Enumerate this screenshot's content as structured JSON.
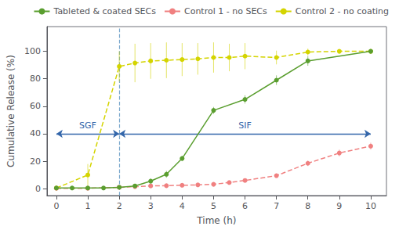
{
  "chart_data": {
    "type": "line",
    "x_label": "Time (h)",
    "y_label": "Cumulative Release (%)",
    "xlim": [
      -0.3,
      10.5
    ],
    "ylim": [
      -5,
      118
    ],
    "xticks": [
      0,
      1,
      2,
      3,
      4,
      5,
      6,
      7,
      8,
      9,
      10
    ],
    "yticks": [
      0,
      20,
      40,
      60,
      80,
      100
    ],
    "grid": false,
    "legend": "upper right",
    "series": [
      {
        "name": "Tableted & coated SECs",
        "color": "#5a9e2f",
        "line_style": "solid",
        "marker": "circle",
        "x": [
          0,
          0.5,
          1,
          1.5,
          2,
          2.5,
          3,
          3.5,
          4,
          5,
          6,
          7,
          8,
          10
        ],
        "values": [
          0.5,
          0.5,
          0.5,
          0.5,
          1.0,
          2.0,
          5.5,
          10.5,
          22,
          57,
          65,
          79,
          93,
          100
        ],
        "error": [
          0.4,
          0.4,
          0.4,
          0.4,
          0.8,
          1.2,
          2.0,
          2.5,
          2.0,
          2.5,
          3.0,
          3.5,
          3.5,
          1.0
        ]
      },
      {
        "name": "Control 1 - no SECs",
        "color": "#f08080",
        "line_style": "dashed",
        "marker": "circle",
        "x": [
          0,
          1,
          2,
          2.5,
          3,
          3.5,
          4,
          4.5,
          5,
          5.5,
          6,
          7,
          8,
          9,
          10
        ],
        "values": [
          0.3,
          0.3,
          1.0,
          1.5,
          2.0,
          2.2,
          2.5,
          2.8,
          3.2,
          4.5,
          6.0,
          9.5,
          18.5,
          26.0,
          31.0
        ],
        "error": [
          0.2,
          0.2,
          0.4,
          0.4,
          0.5,
          0.5,
          0.5,
          0.5,
          0.6,
          0.8,
          1.0,
          1.5,
          2.0,
          2.5,
          2.5
        ]
      },
      {
        "name": "Control 2 - no coating",
        "color": "#d4d400",
        "line_style": "dashed",
        "marker": "circle",
        "x": [
          0,
          1,
          2,
          2.5,
          3,
          3.5,
          4,
          4.5,
          5,
          5.5,
          6,
          7,
          8,
          9,
          10
        ],
        "values": [
          0.5,
          10.0,
          89.0,
          91.5,
          93.0,
          93.5,
          94.0,
          94.5,
          95.5,
          95.5,
          96.5,
          95.5,
          99.5,
          100.0,
          100.0
        ],
        "error": [
          0.5,
          8.0,
          11.0,
          14.0,
          13.0,
          13.0,
          12.0,
          11.5,
          11.0,
          10.0,
          9.5,
          5.0,
          2.5,
          1.5,
          1.5
        ]
      }
    ],
    "vline": {
      "x": 2.0,
      "color": "#7aa8cc",
      "line_style": "dashed"
    },
    "annotations": [
      {
        "text": "SGF",
        "x": [
          0.0,
          2.0
        ],
        "y": 40,
        "color": "#3366aa"
      },
      {
        "text": "SIF",
        "x": [
          2.0,
          10.0
        ],
        "y": 40,
        "color": "#3366aa"
      }
    ]
  }
}
